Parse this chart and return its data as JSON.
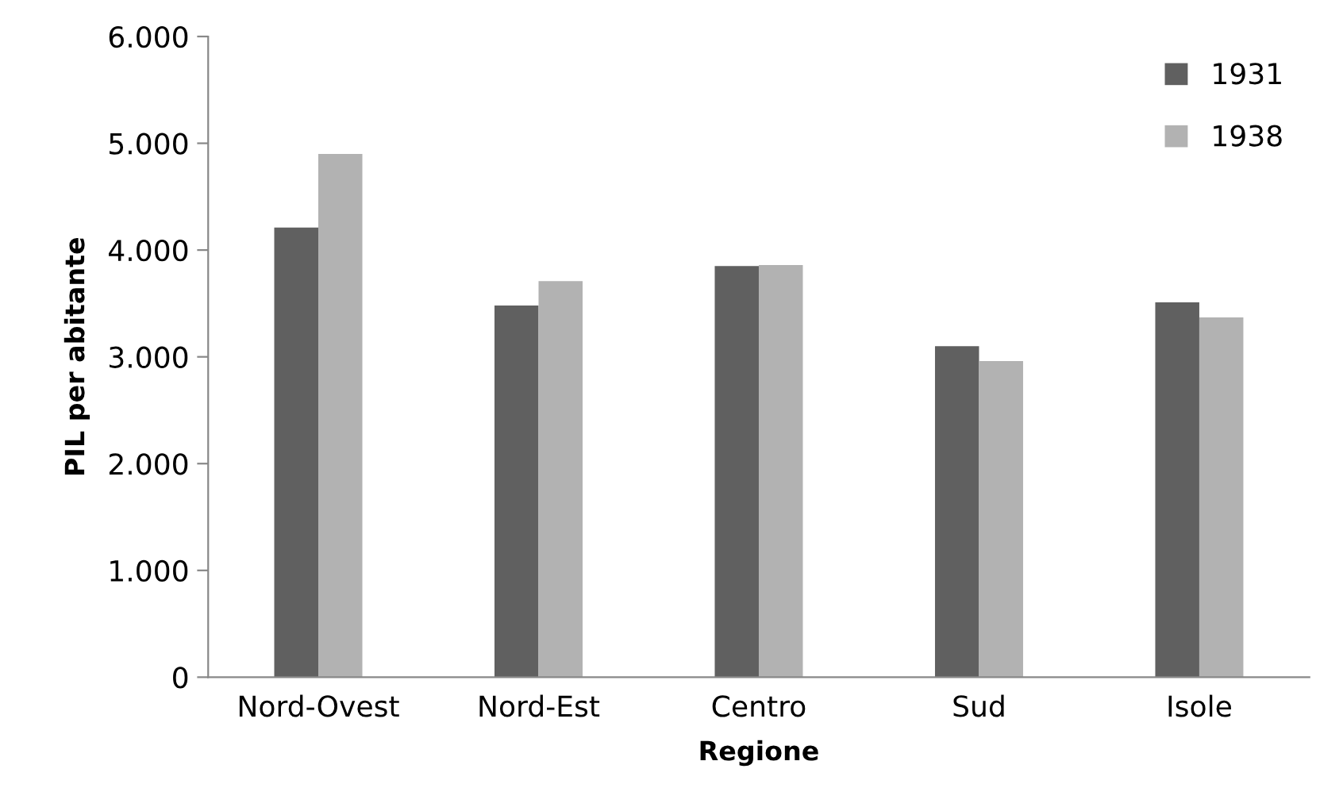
{
  "chart_data": {
    "type": "bar",
    "xlabel": "Regione",
    "ylabel": "PIL per abitante",
    "categories": [
      "Nord-Ovest",
      "Nord-Est",
      "Centro",
      "Sud",
      "Isole"
    ],
    "series": [
      {
        "name": "1931",
        "color": "#606060",
        "values": [
          4210,
          3480,
          3850,
          3100,
          3510
        ]
      },
      {
        "name": "1938",
        "color": "#b2b2b2",
        "values": [
          4900,
          3710,
          3860,
          2960,
          3370
        ]
      }
    ],
    "ylim": [
      0,
      6000
    ],
    "yticks": [
      {
        "value": 0,
        "label": "0"
      },
      {
        "value": 1000,
        "label": "1.000"
      },
      {
        "value": 2000,
        "label": "2.000"
      },
      {
        "value": 3000,
        "label": "3.000"
      },
      {
        "value": 4000,
        "label": "4.000"
      },
      {
        "value": 5000,
        "label": "5.000"
      },
      {
        "value": 6000,
        "label": "6.000"
      }
    ],
    "grid": false,
    "legend": "top right"
  }
}
